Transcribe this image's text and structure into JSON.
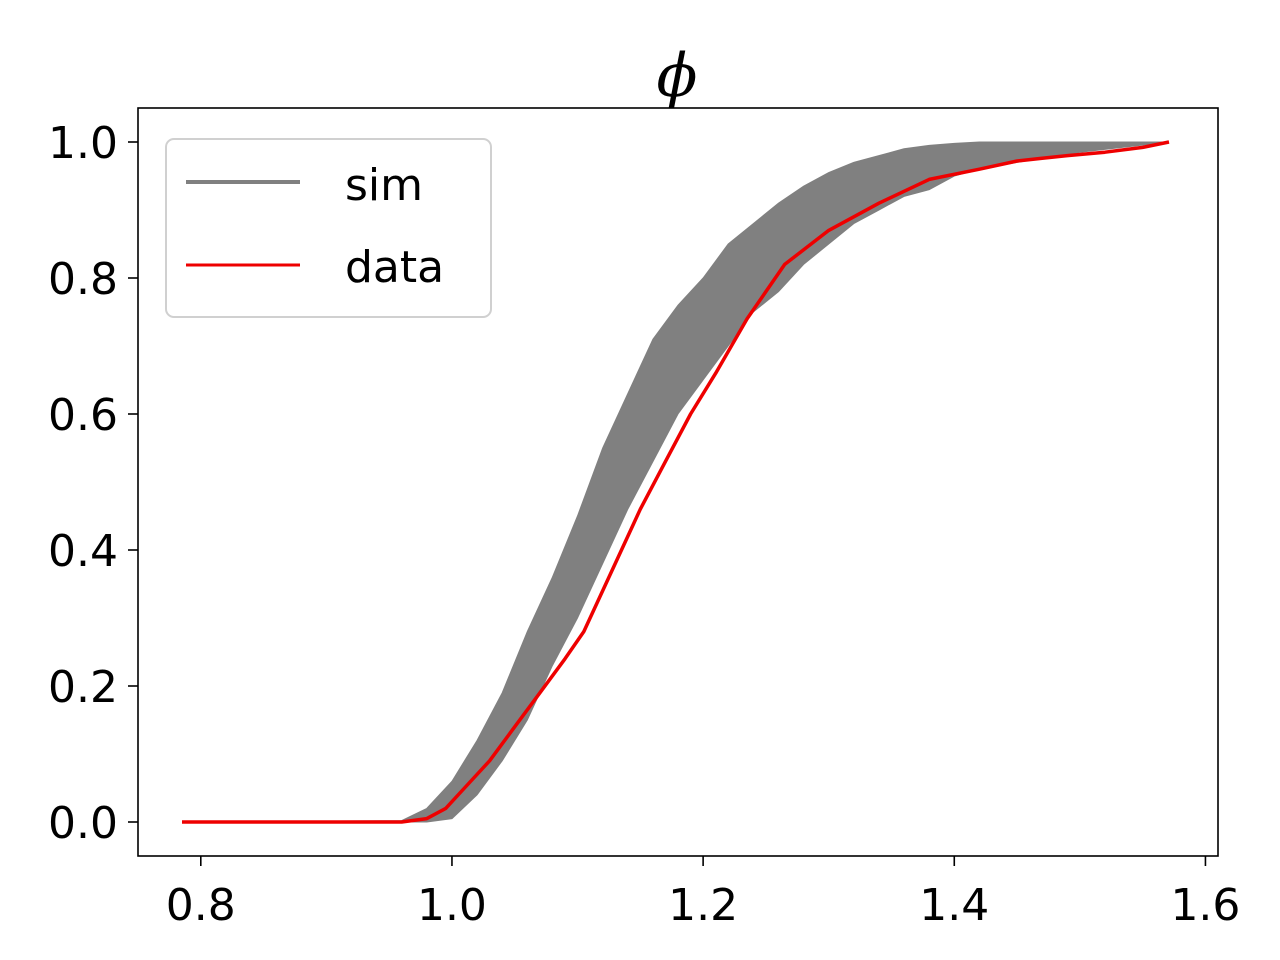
{
  "chart_data": {
    "type": "line",
    "title": "ϕ",
    "xlabel": "",
    "ylabel": "",
    "xlim": [
      0.75,
      1.61
    ],
    "ylim": [
      -0.05,
      1.05
    ],
    "xticks": [
      0.8,
      1.0,
      1.2,
      1.4,
      1.6
    ],
    "xtick_labels": [
      "0.8",
      "1.0",
      "1.2",
      "1.4",
      "1.6"
    ],
    "yticks": [
      0.0,
      0.2,
      0.4,
      0.6,
      0.8,
      1.0
    ],
    "ytick_labels": [
      "0.0",
      "0.2",
      "0.4",
      "0.6",
      "0.8",
      "1.0"
    ],
    "grid": false,
    "legend": {
      "placement": "top-left",
      "entries": [
        "sim",
        "data"
      ]
    },
    "series": [
      {
        "name": "sim",
        "kind": "band",
        "color": "#808080",
        "x": [
          0.785,
          0.96,
          0.98,
          1.0,
          1.02,
          1.04,
          1.06,
          1.08,
          1.1,
          1.12,
          1.14,
          1.16,
          1.18,
          1.2,
          1.22,
          1.24,
          1.26,
          1.28,
          1.3,
          1.32,
          1.34,
          1.36,
          1.38,
          1.4,
          1.42,
          1.45,
          1.5,
          1.571
        ],
        "lower": [
          0.0,
          0.0,
          0.0,
          0.005,
          0.04,
          0.09,
          0.15,
          0.23,
          0.3,
          0.38,
          0.46,
          0.53,
          0.6,
          0.65,
          0.7,
          0.75,
          0.78,
          0.82,
          0.85,
          0.88,
          0.9,
          0.92,
          0.93,
          0.95,
          0.96,
          0.97,
          0.985,
          1.0
        ],
        "upper": [
          0.0,
          0.002,
          0.02,
          0.06,
          0.12,
          0.19,
          0.28,
          0.36,
          0.45,
          0.55,
          0.63,
          0.71,
          0.76,
          0.8,
          0.85,
          0.88,
          0.91,
          0.935,
          0.955,
          0.97,
          0.98,
          0.99,
          0.995,
          0.998,
          1.0,
          1.0,
          1.0,
          1.0
        ]
      },
      {
        "name": "data",
        "kind": "line",
        "color": "#ee0000",
        "x": [
          0.785,
          0.96,
          0.98,
          0.995,
          1.01,
          1.03,
          1.05,
          1.07,
          1.09,
          1.105,
          1.13,
          1.15,
          1.17,
          1.19,
          1.21,
          1.235,
          1.265,
          1.3,
          1.34,
          1.38,
          1.42,
          1.45,
          1.47,
          1.49,
          1.52,
          1.55,
          1.571
        ],
        "y": [
          0.0,
          0.0,
          0.005,
          0.02,
          0.05,
          0.09,
          0.14,
          0.19,
          0.24,
          0.28,
          0.38,
          0.46,
          0.53,
          0.6,
          0.66,
          0.74,
          0.82,
          0.87,
          0.91,
          0.945,
          0.96,
          0.972,
          0.976,
          0.98,
          0.985,
          0.992,
          1.0
        ]
      }
    ]
  }
}
